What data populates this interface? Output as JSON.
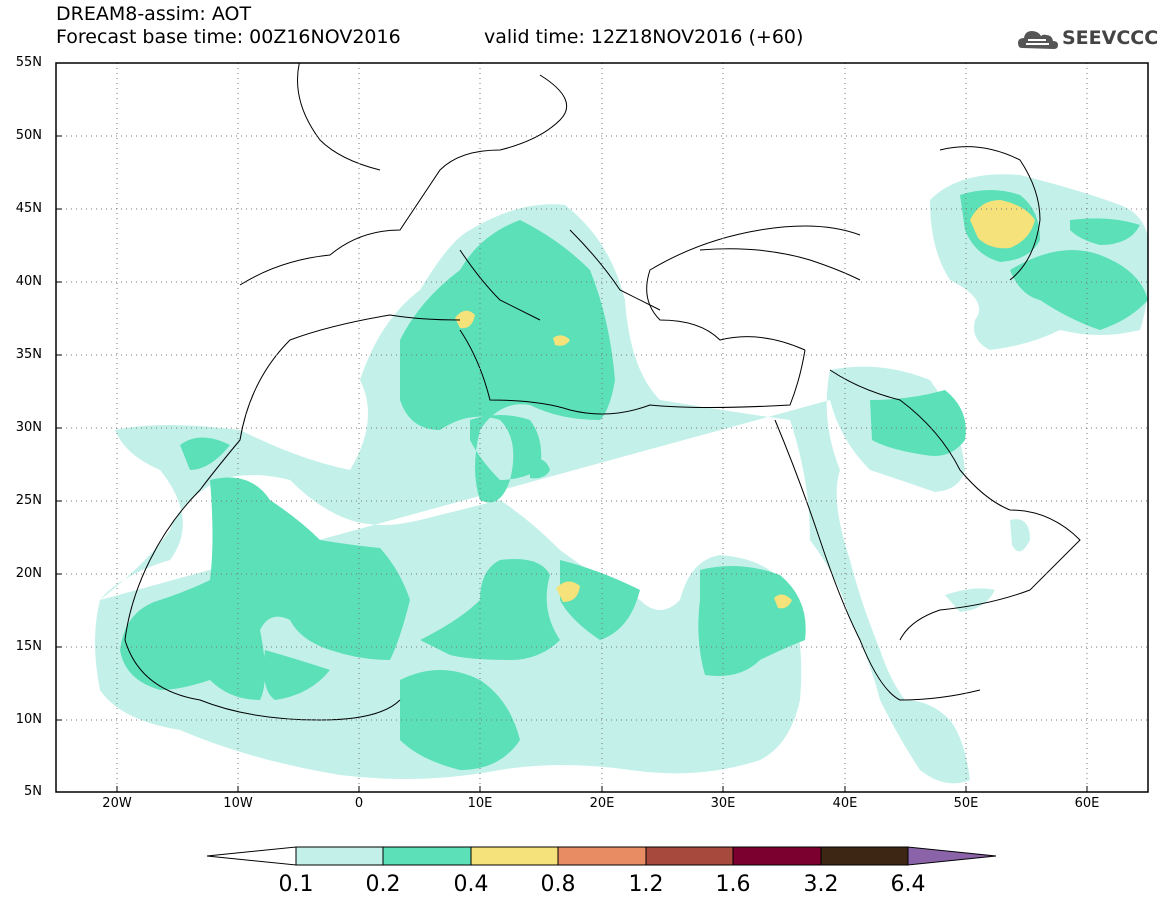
{
  "header": {
    "title": "DREAM8-assim: AOT",
    "base_time": "Forecast base time: 00Z16NOV2016",
    "valid_time": "valid time: 12Z18NOV2016 (+60)",
    "logo_text": "SEEVCCC"
  },
  "map": {
    "type": "contour_map",
    "variable": "AOT",
    "lon_range": [
      -25,
      65
    ],
    "lat_range": [
      5,
      55
    ],
    "y_ticks": [
      "55N",
      "50N",
      "45N",
      "40N",
      "35N",
      "30N",
      "25N",
      "20N",
      "15N",
      "10N",
      "5N"
    ],
    "x_ticks": [
      "20W",
      "10W",
      "0",
      "10E",
      "20E",
      "30E",
      "40E",
      "50E",
      "60E"
    ],
    "grid": true
  },
  "colorbar": {
    "levels": [
      "0.1",
      "0.2",
      "0.4",
      "0.8",
      "1.2",
      "1.6",
      "3.2",
      "6.4"
    ],
    "colors": [
      "#ffffff",
      "#c3f1ea",
      "#5ce0b8",
      "#f5e27a",
      "#e88c64",
      "#a8493e",
      "#7b0030",
      "#3d2614",
      "#8a63a8"
    ]
  }
}
